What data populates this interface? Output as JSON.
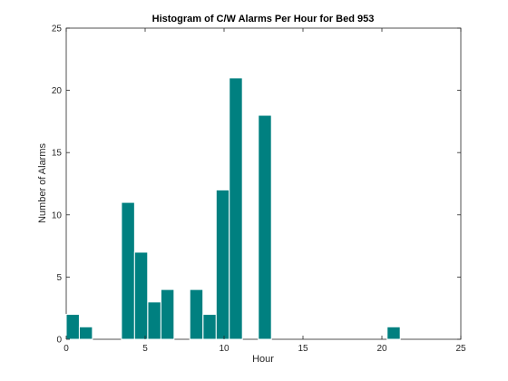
{
  "chart_data": {
    "type": "bar",
    "title": "Histogram of C/W Alarms Per Hour for Bed 953",
    "xlabel": "Hour",
    "ylabel": "Number of Alarms",
    "xlim": [
      0,
      25
    ],
    "ylim": [
      0,
      25
    ],
    "xticks": [
      0,
      5,
      10,
      15,
      20,
      25
    ],
    "yticks": [
      0,
      5,
      10,
      15,
      20,
      25
    ],
    "bin_width": 0.83,
    "bins": [
      {
        "start": 0.0,
        "value": 2
      },
      {
        "start": 0.83,
        "value": 1
      },
      {
        "start": 3.5,
        "value": 11
      },
      {
        "start": 4.33,
        "value": 7
      },
      {
        "start": 5.17,
        "value": 3
      },
      {
        "start": 6.0,
        "value": 4
      },
      {
        "start": 7.83,
        "value": 4
      },
      {
        "start": 8.67,
        "value": 2
      },
      {
        "start": 9.5,
        "value": 12
      },
      {
        "start": 10.33,
        "value": 21
      },
      {
        "start": 12.17,
        "value": 18
      },
      {
        "start": 20.33,
        "value": 1
      },
      {
        "start": 21.17,
        "value": 0
      },
      {
        "start": 22.0,
        "value": 0
      },
      {
        "start": 22.83,
        "value": 0
      },
      {
        "start": 23.67,
        "value": 0
      }
    ],
    "bar_color": "#008080",
    "bar_edge_color": "#ffffff",
    "grid": false,
    "legend": "none"
  }
}
